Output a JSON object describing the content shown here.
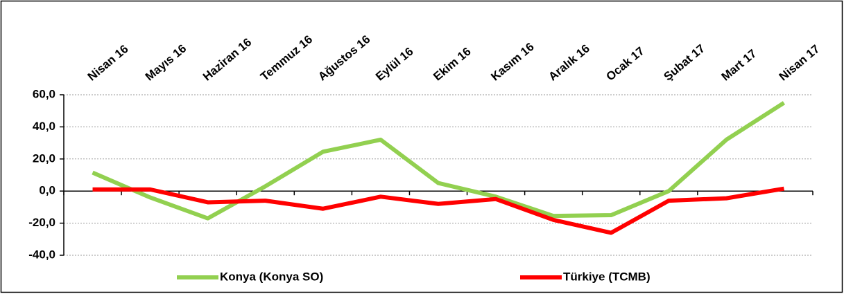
{
  "chart_data": {
    "type": "line",
    "categories": [
      "Nisan 16",
      "Mayıs 16",
      "Haziran 16",
      "Temmuz 16",
      "Ağustos 16",
      "Eylül 16",
      "Ekim 16",
      "Kasım 16",
      "Aralık 16",
      "Ocak 17",
      "Şubat 17",
      "Mart 17",
      "Nisan 17"
    ],
    "series": [
      {
        "name": "Konya (Konya SO)",
        "color": "#92d050",
        "values": [
          11.5,
          -4,
          -17,
          3,
          24.5,
          32,
          5,
          -3.5,
          -15.5,
          -15,
          0,
          32,
          55
        ]
      },
      {
        "name": "Türkiye (TCMB)",
        "color": "#ff0000",
        "values": [
          1,
          1,
          -7,
          -6,
          -11,
          -3.5,
          -8,
          -5,
          -18,
          -26,
          -6,
          -4.5,
          1.5
        ]
      }
    ],
    "ylim": [
      -40,
      60
    ],
    "yticks": [
      {
        "value": -40,
        "label": "-40,0"
      },
      {
        "value": -20,
        "label": "-20,0"
      },
      {
        "value": 0,
        "label": "0,0"
      },
      {
        "value": 20,
        "label": "20,0"
      },
      {
        "value": 40,
        "label": "40,0"
      },
      {
        "value": 60,
        "label": "60,0"
      }
    ],
    "grid": true,
    "legend": "bottom"
  }
}
